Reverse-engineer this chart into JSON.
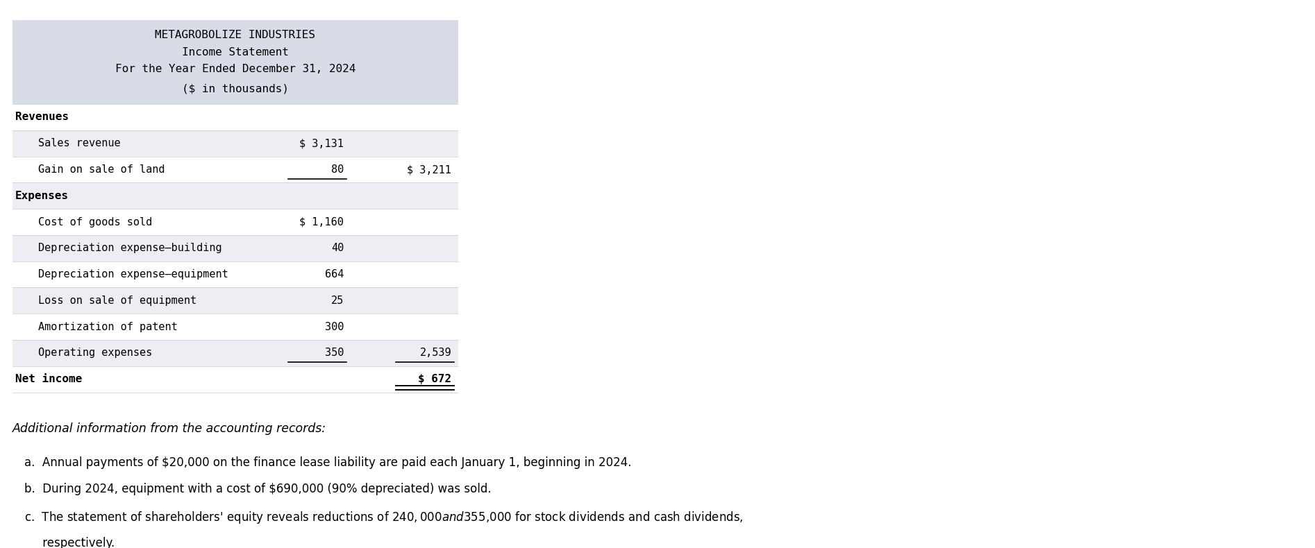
{
  "title_lines": [
    "METAGROBOLIZE INDUSTRIES",
    "Income Statement",
    "For the Year Ended December 31, 2024",
    "($ in thousands)"
  ],
  "header_bg": "#d8dce6",
  "alt_bg": "#eceef3",
  "white_bg": "#ffffff",
  "font_color": "#000000",
  "rows": [
    {
      "label": "Revenues",
      "col1": "",
      "col2": "",
      "bold": true,
      "indent": 0,
      "ul_col1": false,
      "ul_col2": false,
      "double_col2": false,
      "alt": false
    },
    {
      "label": "Sales revenue",
      "col1": "$ 3,131",
      "col2": "",
      "bold": false,
      "indent": 1,
      "ul_col1": false,
      "ul_col2": false,
      "double_col2": false,
      "alt": true
    },
    {
      "label": "Gain on sale of land",
      "col1": "80",
      "col2": "$ 3,211",
      "bold": false,
      "indent": 1,
      "ul_col1": true,
      "ul_col2": false,
      "double_col2": false,
      "alt": false
    },
    {
      "label": "Expenses",
      "col1": "",
      "col2": "",
      "bold": true,
      "indent": 0,
      "ul_col1": false,
      "ul_col2": false,
      "double_col2": false,
      "alt": true
    },
    {
      "label": "Cost of goods sold",
      "col1": "$ 1,160",
      "col2": "",
      "bold": false,
      "indent": 1,
      "ul_col1": false,
      "ul_col2": false,
      "double_col2": false,
      "alt": false
    },
    {
      "label": "Depreciation expense–building",
      "col1": "40",
      "col2": "",
      "bold": false,
      "indent": 1,
      "ul_col1": false,
      "ul_col2": false,
      "double_col2": false,
      "alt": true
    },
    {
      "label": "Depreciation expense–equipment",
      "col1": "664",
      "col2": "",
      "bold": false,
      "indent": 1,
      "ul_col1": false,
      "ul_col2": false,
      "double_col2": false,
      "alt": false
    },
    {
      "label": "Loss on sale of equipment",
      "col1": "25",
      "col2": "",
      "bold": false,
      "indent": 1,
      "ul_col1": false,
      "ul_col2": false,
      "double_col2": false,
      "alt": true
    },
    {
      "label": "Amortization of patent",
      "col1": "300",
      "col2": "",
      "bold": false,
      "indent": 1,
      "ul_col1": false,
      "ul_col2": false,
      "double_col2": false,
      "alt": false
    },
    {
      "label": "Operating expenses",
      "col1": "350",
      "col2": "2,539",
      "bold": false,
      "indent": 1,
      "ul_col1": true,
      "ul_col2": true,
      "double_col2": false,
      "alt": true
    },
    {
      "label": "Net income",
      "col1": "",
      "col2": "$ 672",
      "bold": true,
      "indent": 0,
      "ul_col1": false,
      "ul_col2": false,
      "double_col2": true,
      "alt": false
    }
  ],
  "additional_title": "Additional information from the accounting records:",
  "additional_items": [
    "a.  Annual payments of $20,000 on the finance lease liability are paid each January 1, beginning in 2024.",
    "b.  During 2024, equipment with a cost of $690,000 (90% depreciated) was sold.",
    "c.  The statement of shareholders' equity reveals reductions of $240,000 and $355,000 for stock dividends and cash dividends,",
    "     respectively."
  ]
}
